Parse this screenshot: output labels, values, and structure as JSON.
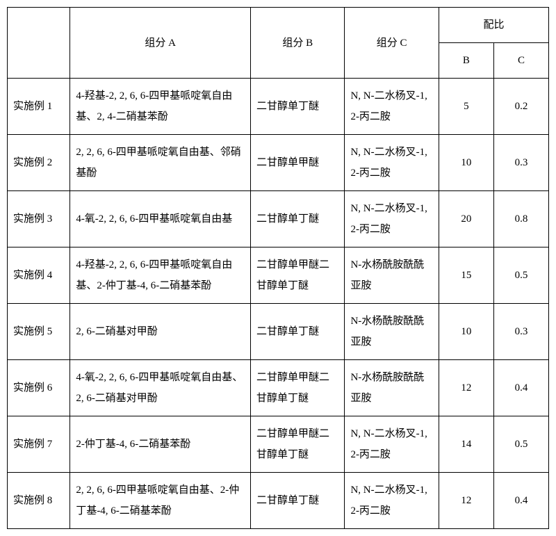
{
  "headers": {
    "blank": "",
    "compA": "组分 A",
    "compB": "组分 B",
    "compC": "组分 C",
    "ratio": "配比",
    "ratioB": "B",
    "ratioC": "C"
  },
  "rows": [
    {
      "label": "实施例 1",
      "compA": "4-羟基-2, 2, 6, 6-四甲基哌啶氧自由基、2, 4-二硝基苯酚",
      "compB": "二甘醇单丁醚",
      "compC": "N, N-二水杨叉-1, 2-丙二胺",
      "ratioB": "5",
      "ratioC": "0.2"
    },
    {
      "label": "实施例 2",
      "compA": "2, 2, 6, 6-四甲基哌啶氧自由基、邻硝基酚",
      "compB": "二甘醇单甲醚",
      "compC": "N, N-二水杨叉-1, 2-丙二胺",
      "ratioB": "10",
      "ratioC": "0.3"
    },
    {
      "label": "实施例 3",
      "compA": "4-氧-2, 2, 6, 6-四甲基哌啶氧自由基",
      "compB": "二甘醇单丁醚",
      "compC": "N, N-二水杨叉-1, 2-丙二胺",
      "ratioB": "20",
      "ratioC": "0.8"
    },
    {
      "label": "实施例 4",
      "compA": "4-羟基-2, 2, 6, 6-四甲基哌啶氧自由基、2-仲丁基-4, 6-二硝基苯酚",
      "compB": "二甘醇单甲醚二甘醇单丁醚",
      "compC": "N-水杨酰胺酰酰亚胺",
      "ratioB": "15",
      "ratioC": "0.5"
    },
    {
      "label": "实施例 5",
      "compA": "2, 6-二硝基对甲酚",
      "compB": "二甘醇单丁醚",
      "compC": "N-水杨酰胺酰酰亚胺",
      "ratioB": "10",
      "ratioC": "0.3"
    },
    {
      "label": "实施例 6",
      "compA": "4-氧-2, 2, 6, 6-四甲基哌啶氧自由基、2, 6-二硝基对甲酚",
      "compB": "二甘醇单甲醚二甘醇单丁醚",
      "compC": "N-水杨酰胺酰酰亚胺",
      "ratioB": "12",
      "ratioC": "0.4"
    },
    {
      "label": "实施例 7",
      "compA": "2-仲丁基-4, 6-二硝基苯酚",
      "compB": "二甘醇单甲醚二甘醇单丁醚",
      "compC": "N, N-二水杨叉-1, 2-丙二胺",
      "ratioB": "14",
      "ratioC": "0.5"
    },
    {
      "label": "实施例 8",
      "compA": "2, 2, 6, 6-四甲基哌啶氧自由基、2-仲丁基-4, 6-二硝基苯酚",
      "compB": "二甘醇单丁醚",
      "compC": "N, N-二水杨叉-1, 2-丙二胺",
      "ratioB": "12",
      "ratioC": "0.4"
    }
  ]
}
